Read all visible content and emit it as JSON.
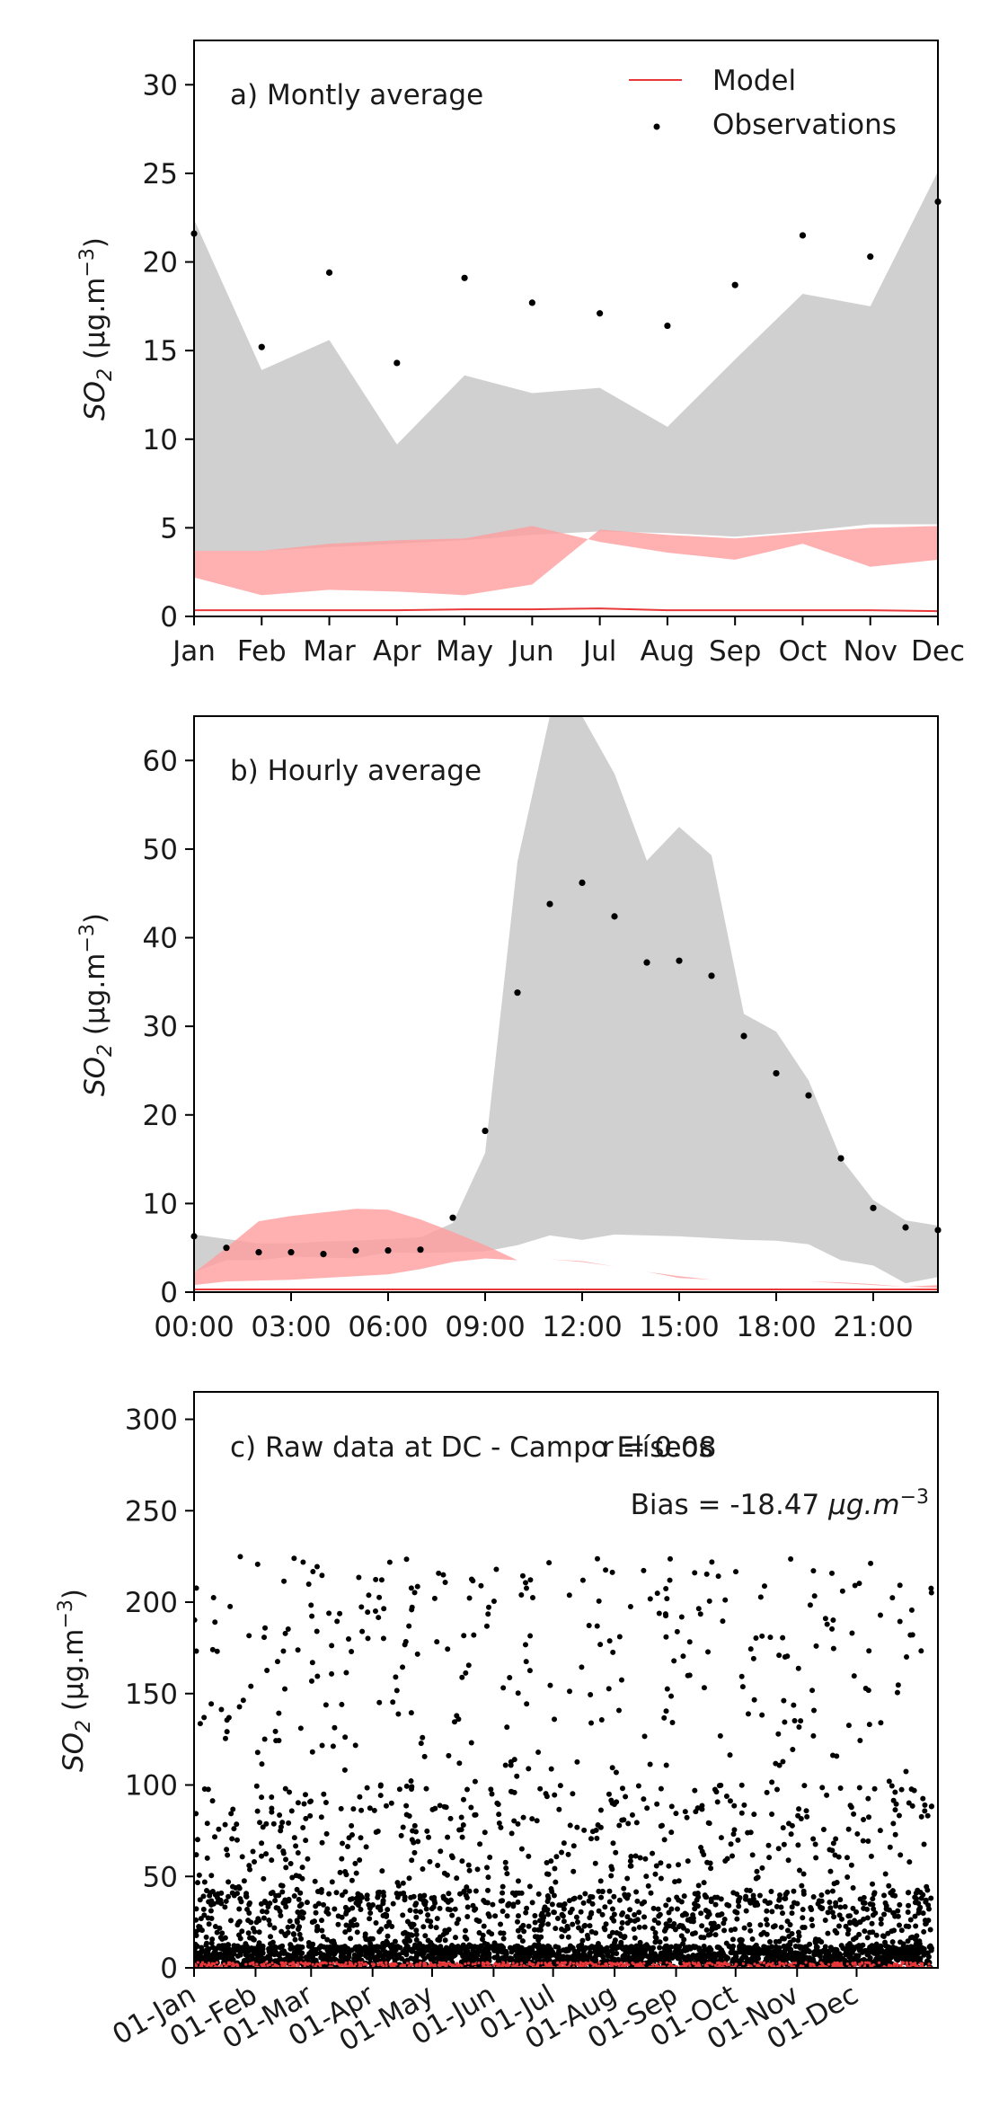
{
  "legend": {
    "model": "Model",
    "observations": "Observations"
  },
  "colors": {
    "model_line": "#e8383a",
    "model_band": "#ff9d9f",
    "obs_band": "#c8c8c8",
    "obs_point": "#000000"
  },
  "chart_data": [
    {
      "id": "monthly",
      "type": "line",
      "title": "a) Montly average",
      "ylabel_base": "SO",
      "ylabel_sub": "2",
      "ylabel_unit": " (μg.m",
      "ylabel_sup": "−3",
      "ylabel_close": ")",
      "categories": [
        "Jan",
        "Feb",
        "Mar",
        "Apr",
        "May",
        "Jun",
        "Jul",
        "Aug",
        "Sep",
        "Oct",
        "Nov",
        "Dec"
      ],
      "ylim": [
        0,
        32.5
      ],
      "yticks": [
        0,
        5,
        10,
        15,
        20,
        25,
        30
      ],
      "legend_position": "top-right",
      "grid": false,
      "observations": [
        21.6,
        15.2,
        19.4,
        14.3,
        19.1,
        17.7,
        17.1,
        16.4,
        18.7,
        21.5,
        20.3,
        23.4
      ],
      "obs_band_low": [
        3.7,
        3.7,
        3.9,
        4.1,
        4.3,
        4.6,
        4.8,
        4.7,
        4.5,
        4.8,
        5.2,
        5.2
      ],
      "obs_band_high": [
        22.4,
        13.9,
        15.6,
        9.7,
        13.6,
        12.6,
        12.9,
        10.7,
        14.5,
        18.2,
        17.5,
        25.1
      ],
      "model": [
        0.35,
        0.35,
        0.35,
        0.35,
        0.4,
        0.4,
        0.45,
        0.35,
        0.35,
        0.35,
        0.35,
        0.3
      ],
      "model_band_low": [
        2.2,
        1.2,
        1.5,
        1.4,
        1.2,
        1.8,
        4.9,
        4.6,
        4.4,
        4.7,
        5.0,
        5.1
      ],
      "model_band_high": [
        3.7,
        3.7,
        4.1,
        4.3,
        4.4,
        5.1,
        4.2,
        3.6,
        3.2,
        4.1,
        2.8,
        3.2
      ]
    },
    {
      "id": "hourly",
      "type": "line",
      "title": "b) Hourly average",
      "ylabel_base": "SO",
      "ylabel_sub": "2",
      "ylabel_unit": " (μg.m",
      "ylabel_sup": "−3",
      "ylabel_close": ")",
      "x": [
        0,
        1,
        2,
        3,
        4,
        5,
        6,
        7,
        8,
        9,
        10,
        11,
        12,
        13,
        14,
        15,
        16,
        17,
        18,
        19,
        20,
        21,
        22,
        23
      ],
      "xtick_labels": [
        "00:00",
        "03:00",
        "06:00",
        "09:00",
        "12:00",
        "15:00",
        "18:00",
        "21:00"
      ],
      "xtick_values": [
        0,
        3,
        6,
        9,
        12,
        15,
        18,
        21
      ],
      "ylim": [
        0,
        65
      ],
      "yticks": [
        0,
        10,
        20,
        30,
        40,
        50,
        60
      ],
      "grid": false,
      "observations": [
        6.3,
        5.0,
        4.5,
        4.5,
        4.3,
        4.7,
        4.7,
        4.8,
        8.4,
        18.2,
        33.8,
        43.8,
        46.2,
        42.4,
        37.2,
        37.4,
        35.7,
        28.9,
        24.7,
        22.2,
        15.1,
        9.5,
        7.3,
        7.0
      ],
      "obs_band_low": [
        2.3,
        3.6,
        3.6,
        4.0,
        3.9,
        3.8,
        4.5,
        4.4,
        4.5,
        4.6,
        5.3,
        6.4,
        5.9,
        6.5,
        6.4,
        6.3,
        6.1,
        5.9,
        5.8,
        5.4,
        3.6,
        3.0,
        1.0,
        1.7
      ],
      "obs_band_high": [
        6.5,
        6.0,
        5.5,
        5.5,
        5.7,
        5.8,
        6.0,
        6.2,
        7.8,
        15.7,
        48.6,
        66.0,
        66.0,
        58.5,
        48.7,
        52.5,
        49.3,
        31.4,
        29.4,
        23.9,
        15.1,
        10.4,
        8.1,
        7.5
      ],
      "model": [
        0.3,
        0.3,
        0.3,
        0.3,
        0.3,
        0.3,
        0.3,
        0.3,
        0.3,
        0.3,
        0.3,
        0.3,
        0.3,
        0.3,
        0.3,
        0.3,
        0.3,
        0.3,
        0.3,
        0.3,
        0.3,
        0.3,
        0.3,
        0.3
      ],
      "model_band_low": [
        0.8,
        1.2,
        1.3,
        1.4,
        1.6,
        1.8,
        2.0,
        2.6,
        3.4,
        3.8,
        3.6,
        3.7,
        3.4,
        2.9,
        2.3,
        1.6,
        1.4,
        1.2,
        1.2,
        1.2,
        1.0,
        0.8,
        0.6,
        0.5
      ],
      "model_band_high": [
        2.2,
        5.0,
        8.0,
        8.6,
        9.0,
        9.4,
        9.3,
        8.2,
        6.8,
        5.3,
        3.6,
        3.7,
        3.5,
        2.9,
        2.3,
        1.8,
        1.4,
        1.2,
        1.2,
        1.2,
        1.1,
        0.9,
        0.6,
        0.8
      ]
    },
    {
      "id": "raw",
      "type": "scatter",
      "title": "c) Raw data at DC - Campo Elíseos",
      "stat_r": "r = 0.08",
      "bias_text": "Bias = -18.47 ",
      "bias_unit": "μg.m",
      "bias_sup": "−3",
      "ylabel_base": "SO",
      "ylabel_sub": "2",
      "ylabel_unit": " (μg.m",
      "ylabel_sup": "−3",
      "ylabel_close": ")",
      "xtick_labels": [
        "01-Jan",
        "01-Feb",
        "01-Mar",
        "01-Apr",
        "01-May",
        "01-Jun",
        "01-Jul",
        "01-Aug",
        "01-Sep",
        "01-Oct",
        "01-Nov",
        "01-Dec"
      ],
      "xtick_days": [
        0,
        31,
        59,
        90,
        120,
        151,
        181,
        212,
        243,
        273,
        304,
        334
      ],
      "xlim": [
        0,
        375
      ],
      "ylim": [
        0,
        315
      ],
      "yticks": [
        0,
        50,
        100,
        150,
        200,
        250,
        300
      ],
      "grid": false,
      "series_description_values": {
        "observations_max": 225,
        "model_max": 3
      }
    }
  ]
}
